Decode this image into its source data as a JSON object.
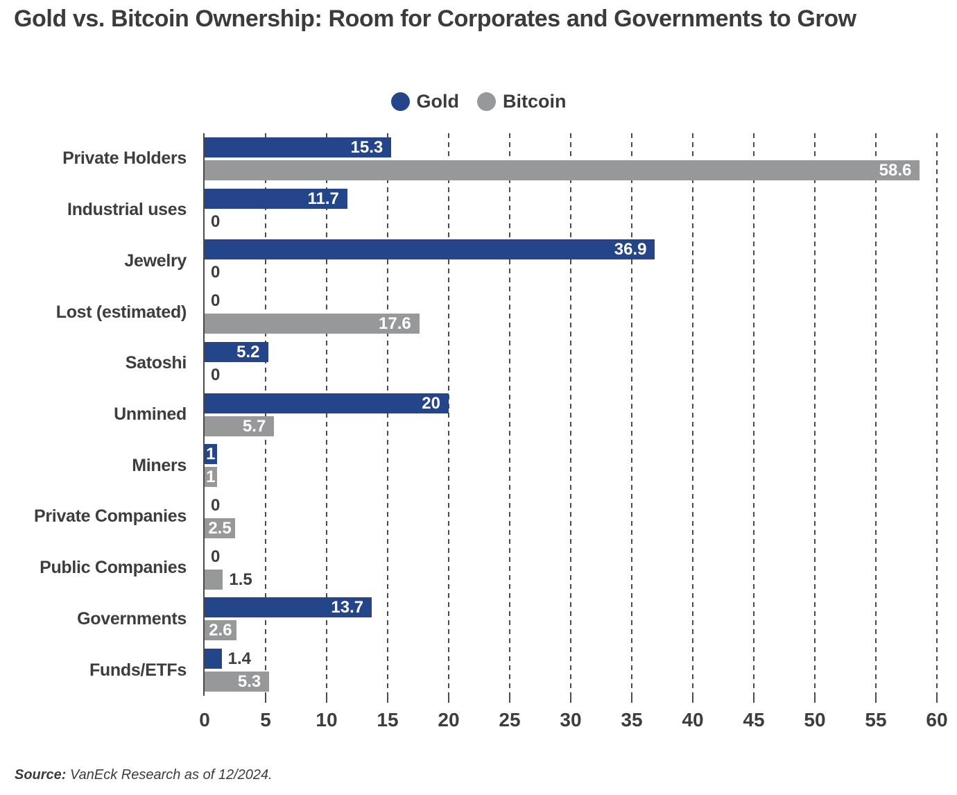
{
  "title": "Gold vs. Bitcoin Ownership: Room for Corporates and Governments to Grow",
  "source": {
    "label": "Source:",
    "text": " VanEck Research as of 12/2024."
  },
  "colors": {
    "gold": "#25458A",
    "bitcoin": "#97989A",
    "text": "#3d3d3d",
    "grid": "#4a4a4a"
  },
  "chart_data": {
    "type": "bar",
    "orientation": "horizontal",
    "title": "Gold vs. Bitcoin Ownership: Room for Corporates and Governments to Grow",
    "categories": [
      "Private Holders",
      "Industrial uses",
      "Jewelry",
      "Lost (estimated)",
      "Satoshi",
      "Unmined",
      "Miners",
      "Private Companies",
      "Public Companies",
      "Governments",
      "Funds/ETFs"
    ],
    "series": [
      {
        "name": "Gold",
        "color": "#25458A",
        "values": [
          15.3,
          11.7,
          36.9,
          0,
          5.2,
          20,
          1,
          0,
          0,
          13.7,
          1.4
        ]
      },
      {
        "name": "Bitcoin",
        "color": "#97989A",
        "values": [
          58.6,
          0,
          0,
          17.6,
          0,
          5.7,
          1,
          2.5,
          1.5,
          2.6,
          5.3
        ]
      }
    ],
    "xlim": [
      0,
      60
    ],
    "xticks": [
      0,
      5,
      10,
      15,
      20,
      25,
      30,
      35,
      40,
      45,
      50,
      55,
      60
    ],
    "grid": "dashed-vertical-gridlines",
    "legend_position": "top-center",
    "xlabel": "",
    "ylabel": ""
  }
}
